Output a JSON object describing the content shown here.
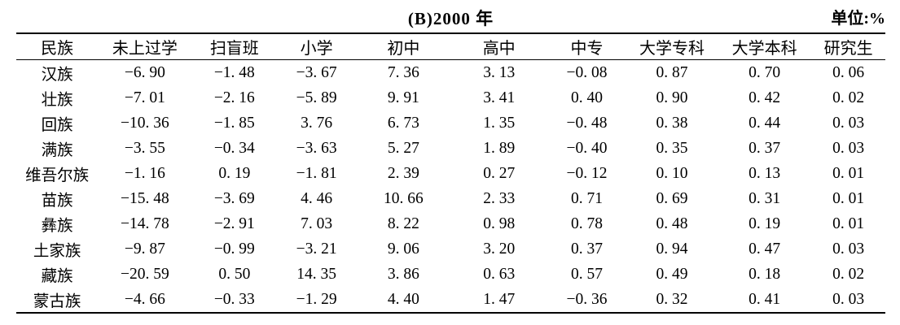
{
  "page": {
    "title": "(B)2000 年",
    "unit_label": "单位:%"
  },
  "table": {
    "headers": [
      "民族",
      "未上过学",
      "扫盲班",
      "小学",
      "初中",
      "高中",
      "中专",
      "大学专科",
      "大学本科",
      "研究生"
    ],
    "rows": [
      {
        "ethnicity": "汉族",
        "values": [
          "−6. 90",
          "−1. 48",
          "−3. 67",
          "7. 36",
          "3. 13",
          "−0. 08",
          "0. 87",
          "0. 70",
          "0. 06"
        ]
      },
      {
        "ethnicity": "壮族",
        "values": [
          "−7. 01",
          "−2. 16",
          "−5. 89",
          "9. 91",
          "3. 41",
          "0. 40",
          "0. 90",
          "0. 42",
          "0. 02"
        ]
      },
      {
        "ethnicity": "回族",
        "values": [
          "−10. 36",
          "−1. 85",
          "3. 76",
          "6. 73",
          "1. 35",
          "−0. 48",
          "0. 38",
          "0. 44",
          "0. 03"
        ]
      },
      {
        "ethnicity": "满族",
        "values": [
          "−3. 55",
          "−0. 34",
          "−3. 63",
          "5. 27",
          "1. 89",
          "−0. 40",
          "0. 35",
          "0. 37",
          "0. 03"
        ]
      },
      {
        "ethnicity": "维吾尔族",
        "values": [
          "−1. 16",
          "0. 19",
          "−1. 81",
          "2. 39",
          "0. 27",
          "−0. 12",
          "0. 10",
          "0. 13",
          "0. 01"
        ]
      },
      {
        "ethnicity": "苗族",
        "values": [
          "−15. 48",
          "−3. 69",
          "4. 46",
          "10. 66",
          "2. 33",
          "0. 71",
          "0. 69",
          "0. 31",
          "0. 01"
        ]
      },
      {
        "ethnicity": "彝族",
        "values": [
          "−14. 78",
          "−2. 91",
          "7. 03",
          "8. 22",
          "0. 98",
          "0. 78",
          "0. 48",
          "0. 19",
          "0. 01"
        ]
      },
      {
        "ethnicity": "土家族",
        "values": [
          "−9. 87",
          "−0. 99",
          "−3. 21",
          "9. 06",
          "3. 20",
          "0. 37",
          "0. 94",
          "0. 47",
          "0. 03"
        ]
      },
      {
        "ethnicity": "藏族",
        "values": [
          "−20. 59",
          "0. 50",
          "14. 35",
          "3. 86",
          "0. 63",
          "0. 57",
          "0. 49",
          "0. 18",
          "0. 02"
        ]
      },
      {
        "ethnicity": "蒙古族",
        "values": [
          "−4. 66",
          "−0. 33",
          "−1. 29",
          "4. 40",
          "1. 47",
          "−0. 36",
          "0. 32",
          "0. 41",
          "0. 03"
        ]
      }
    ]
  }
}
